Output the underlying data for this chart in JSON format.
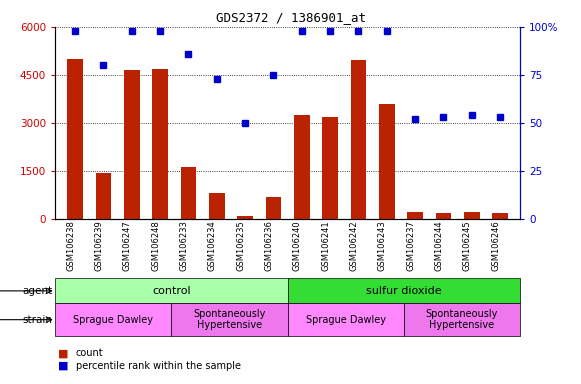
{
  "title": "GDS2372 / 1386901_at",
  "samples": [
    "GSM106238",
    "GSM106239",
    "GSM106247",
    "GSM106248",
    "GSM106233",
    "GSM106234",
    "GSM106235",
    "GSM106236",
    "GSM106240",
    "GSM106241",
    "GSM106242",
    "GSM106243",
    "GSM106237",
    "GSM106244",
    "GSM106245",
    "GSM106246"
  ],
  "counts": [
    5000,
    1430,
    4650,
    4680,
    1620,
    820,
    90,
    680,
    3250,
    3180,
    4980,
    3580,
    200,
    190,
    200,
    180
  ],
  "percentile": [
    98,
    80,
    98,
    98,
    86,
    73,
    50,
    75,
    98,
    98,
    98,
    98,
    52,
    53,
    54,
    53
  ],
  "ylim_left": [
    0,
    6000
  ],
  "ylim_right": [
    0,
    100
  ],
  "yticks_left": [
    0,
    1500,
    3000,
    4500,
    6000
  ],
  "ytick_labels_left": [
    "0",
    "1500",
    "3000",
    "4500",
    "6000"
  ],
  "yticks_right": [
    0,
    25,
    50,
    75,
    100
  ],
  "ytick_labels_right": [
    "0",
    "25",
    "50",
    "75",
    "100%"
  ],
  "bar_color": "#bb2200",
  "dot_color": "#0000cc",
  "title_color": "#000000",
  "axis_label_color_left": "#cc0000",
  "axis_label_color_right": "#0000cc",
  "agent_groups": [
    {
      "label": "control",
      "start": 0,
      "end": 8,
      "color": "#aaffaa"
    },
    {
      "label": "sulfur dioxide",
      "start": 8,
      "end": 16,
      "color": "#33dd33"
    }
  ],
  "strain_groups": [
    {
      "label": "Sprague Dawley",
      "start": 0,
      "end": 4,
      "color": "#ff88ff"
    },
    {
      "label": "Spontaneously\nHypertensive",
      "start": 4,
      "end": 8,
      "color": "#ee77ee"
    },
    {
      "label": "Sprague Dawley",
      "start": 8,
      "end": 12,
      "color": "#ff88ff"
    },
    {
      "label": "Spontaneously\nHypertensive",
      "start": 12,
      "end": 16,
      "color": "#ee77ee"
    }
  ],
  "xtick_bg_color": "#cccccc",
  "plot_bg": "#ffffff",
  "legend_items": [
    {
      "label": "count",
      "color": "#bb2200"
    },
    {
      "label": "percentile rank within the sample",
      "color": "#0000cc"
    }
  ]
}
